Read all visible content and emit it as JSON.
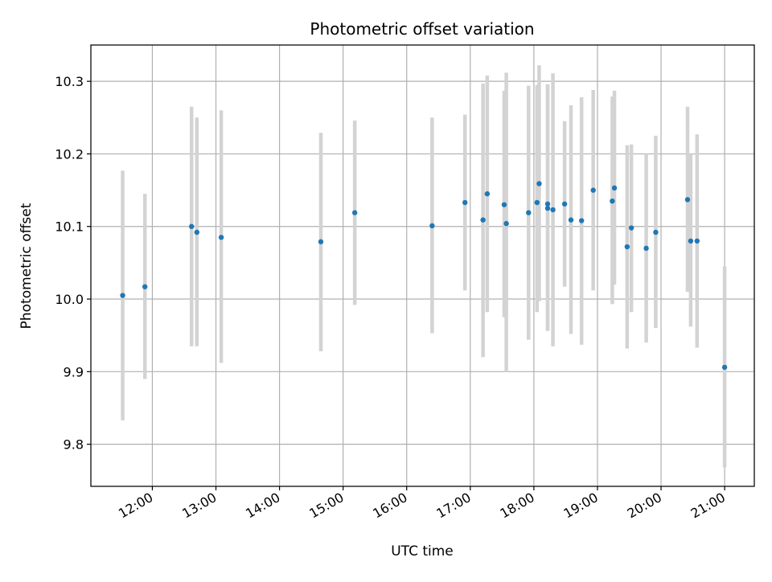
{
  "chart_data": {
    "type": "scatter",
    "title": "Photometric offset variation",
    "xlabel": "UTC time",
    "ylabel": "Photometric offset",
    "xlim": [
      "11:02",
      "21:28"
    ],
    "ylim": [
      9.742,
      10.35
    ],
    "x_ticks": [
      "12:00",
      "13:00",
      "14:00",
      "15:00",
      "16:00",
      "17:00",
      "18:00",
      "19:00",
      "20:00",
      "21:00"
    ],
    "y_ticks": [
      9.8,
      9.9,
      10.0,
      10.1,
      10.2,
      10.3
    ],
    "y_tick_labels": [
      "9.8",
      "9.9",
      "10.0",
      "10.1",
      "10.2",
      "10.3"
    ],
    "grid": true,
    "colors": {
      "point": "#1f77b4",
      "errorbar": "#d3d3d3",
      "grid": "#b0b0b0"
    },
    "points": [
      {
        "t": "11:32",
        "y": 10.005,
        "lo": 9.833,
        "hi": 10.177
      },
      {
        "t": "11:53",
        "y": 10.017,
        "lo": 9.89,
        "hi": 10.145
      },
      {
        "t": "12:37",
        "y": 10.1,
        "lo": 9.935,
        "hi": 10.265
      },
      {
        "t": "12:42",
        "y": 10.092,
        "lo": 9.935,
        "hi": 10.25
      },
      {
        "t": "13:05",
        "y": 10.085,
        "lo": 9.912,
        "hi": 10.26
      },
      {
        "t": "14:39",
        "y": 10.079,
        "lo": 9.928,
        "hi": 10.229
      },
      {
        "t": "15:11",
        "y": 10.119,
        "lo": 9.992,
        "hi": 10.246
      },
      {
        "t": "16:24",
        "y": 10.101,
        "lo": 9.953,
        "hi": 10.25
      },
      {
        "t": "16:55",
        "y": 10.133,
        "lo": 10.012,
        "hi": 10.254
      },
      {
        "t": "17:12",
        "y": 10.109,
        "lo": 9.92,
        "hi": 10.297
      },
      {
        "t": "17:16",
        "y": 10.145,
        "lo": 9.982,
        "hi": 10.308
      },
      {
        "t": "17:32",
        "y": 10.13,
        "lo": 9.975,
        "hi": 10.287
      },
      {
        "t": "17:34",
        "y": 10.104,
        "lo": 9.9,
        "hi": 10.312
      },
      {
        "t": "17:55",
        "y": 10.119,
        "lo": 9.944,
        "hi": 10.294
      },
      {
        "t": "18:03",
        "y": 10.133,
        "lo": 9.982,
        "hi": 10.295
      },
      {
        "t": "18:05",
        "y": 10.159,
        "lo": 9.997,
        "hi": 10.322
      },
      {
        "t": "18:13",
        "y": 10.131,
        "lo": 9.956,
        "hi": 10.296
      },
      {
        "t": "18:13",
        "y": 10.125,
        "lo": 9.957,
        "hi": 10.294
      },
      {
        "t": "18:18",
        "y": 10.123,
        "lo": 9.935,
        "hi": 10.311
      },
      {
        "t": "18:29",
        "y": 10.131,
        "lo": 10.017,
        "hi": 10.245
      },
      {
        "t": "18:35",
        "y": 10.109,
        "lo": 9.952,
        "hi": 10.267
      },
      {
        "t": "18:45",
        "y": 10.108,
        "lo": 9.937,
        "hi": 10.278
      },
      {
        "t": "18:56",
        "y": 10.15,
        "lo": 10.012,
        "hi": 10.288
      },
      {
        "t": "19:14",
        "y": 10.135,
        "lo": 9.993,
        "hi": 10.279
      },
      {
        "t": "19:16",
        "y": 10.153,
        "lo": 10.02,
        "hi": 10.287
      },
      {
        "t": "19:28",
        "y": 10.072,
        "lo": 9.932,
        "hi": 10.212
      },
      {
        "t": "19:32",
        "y": 10.098,
        "lo": 9.982,
        "hi": 10.213
      },
      {
        "t": "19:46",
        "y": 10.07,
        "lo": 9.94,
        "hi": 10.2
      },
      {
        "t": "19:55",
        "y": 10.092,
        "lo": 9.96,
        "hi": 10.225
      },
      {
        "t": "20:25",
        "y": 10.137,
        "lo": 10.01,
        "hi": 10.265
      },
      {
        "t": "20:28",
        "y": 10.08,
        "lo": 9.962,
        "hi": 10.2
      },
      {
        "t": "20:34",
        "y": 10.08,
        "lo": 9.933,
        "hi": 10.227
      },
      {
        "t": "21:00",
        "y": 9.906,
        "lo": 9.768,
        "hi": 10.045
      }
    ]
  }
}
